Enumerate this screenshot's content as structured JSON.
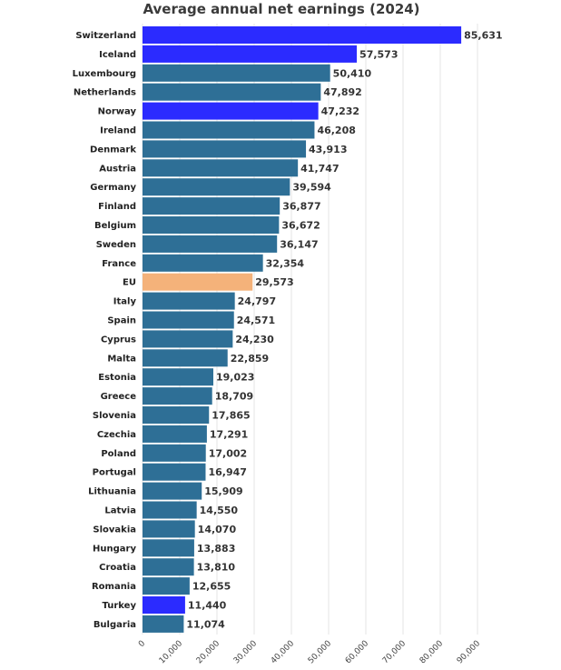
{
  "chart_data": {
    "type": "bar",
    "orientation": "horizontal",
    "title": "Average annual net earnings (2024)",
    "xlabel": "",
    "ylabel": "",
    "xlim": [
      0,
      93000
    ],
    "xticks": [
      0,
      10000,
      20000,
      30000,
      40000,
      50000,
      60000,
      70000,
      80000,
      90000
    ],
    "xtick_labels": [
      "0",
      "10,000",
      "20,000",
      "30,000",
      "40,000",
      "50,000",
      "60,000",
      "70,000",
      "80,000",
      "90,000"
    ],
    "grid": "vertical",
    "categories": [
      "Switzerland",
      "Iceland",
      "Luxembourg",
      "Netherlands",
      "Norway",
      "Ireland",
      "Denmark",
      "Austria",
      "Germany",
      "Finland",
      "Belgium",
      "Sweden",
      "France",
      "EU",
      "Italy",
      "Spain",
      "Cyprus",
      "Malta",
      "Estonia",
      "Greece",
      "Slovenia",
      "Czechia",
      "Poland",
      "Portugal",
      "Lithuania",
      "Latvia",
      "Slovakia",
      "Hungary",
      "Croatia",
      "Romania",
      "Turkey",
      "Bulgaria"
    ],
    "values": [
      85631,
      57573,
      50410,
      47892,
      47232,
      46208,
      43913,
      41747,
      39594,
      36877,
      36672,
      36147,
      32354,
      29573,
      24797,
      24571,
      24230,
      22859,
      19023,
      18709,
      17865,
      17291,
      17002,
      16947,
      15909,
      14550,
      14070,
      13883,
      13810,
      12655,
      11440,
      11074
    ],
    "value_labels": [
      "85,631",
      "57,573",
      "50,410",
      "47,892",
      "47,232",
      "46,208",
      "43,913",
      "41,747",
      "39,594",
      "36,877",
      "36,672",
      "36,147",
      "32,354",
      "29,573",
      "24,797",
      "24,571",
      "24,230",
      "22,859",
      "19,023",
      "18,709",
      "17,865",
      "17,291",
      "17,002",
      "16,947",
      "15,909",
      "14,550",
      "14,070",
      "13,883",
      "13,810",
      "12,655",
      "11,440",
      "11,074"
    ],
    "bar_colors": [
      "#2b2bff",
      "#2b2bff",
      "#2e6f96",
      "#2e6f96",
      "#2b2bff",
      "#2e6f96",
      "#2e6f96",
      "#2e6f96",
      "#2e6f96",
      "#2e6f96",
      "#2e6f96",
      "#2e6f96",
      "#2e6f96",
      "#f4b27a",
      "#2e6f96",
      "#2e6f96",
      "#2e6f96",
      "#2e6f96",
      "#2e6f96",
      "#2e6f96",
      "#2e6f96",
      "#2e6f96",
      "#2e6f96",
      "#2e6f96",
      "#2e6f96",
      "#2e6f96",
      "#2e6f96",
      "#2e6f96",
      "#2e6f96",
      "#2e6f96",
      "#2b2bff",
      "#2e6f96"
    ]
  }
}
